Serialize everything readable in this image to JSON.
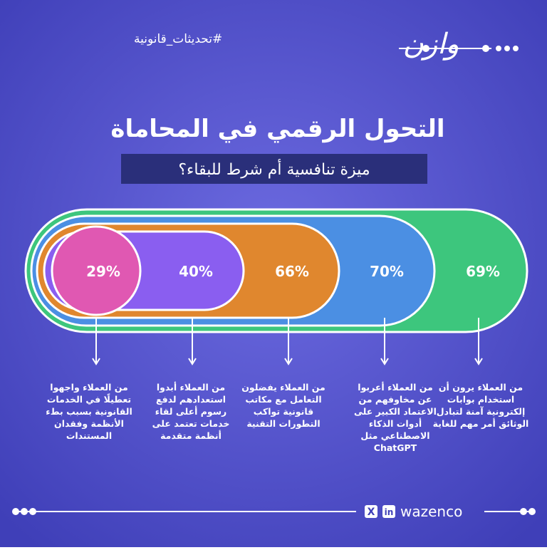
{
  "header": {
    "hashtag": "#تحديثات_قانونية",
    "logo": "وازن"
  },
  "title": "التحول الرقمي في المحاماة",
  "subtitle": "ميزة تنافسية أم شرط للبقاء؟",
  "items": [
    {
      "value_label": "29%",
      "description": [
        "من العملاء واجهوا",
        "تعطيلًا في الخدمات",
        "القانونية بسبب بطء",
        "الأنظمة وفقدان",
        "المستندات"
      ]
    },
    {
      "value_label": "40%",
      "description": [
        "من العملاء أبدوا",
        "استعدادهم لدفع",
        "رسوم أعلى لقاء",
        "خدمات تعتمد على",
        "أنظمة متقدمة"
      ]
    },
    {
      "value_label": "66%",
      "description": [
        "من العملاء يفضلون",
        "التعامل مع مكاتب",
        "قانونية تواكب",
        "التطورات التقنية"
      ]
    },
    {
      "value_label": "70%",
      "description": [
        "من العملاء أعربوا",
        "عن مخاوفهم من",
        "الاعتماد الكبير على",
        "أدوات الذكاء",
        "الاصطناعي مثل",
        "ChatGPT"
      ]
    },
    {
      "value_label": "69%",
      "description": [
        "من العملاء يرون أن",
        "استخدام بوابات",
        "إلكترونية آمنة لتبادل",
        "الوثائق أمر مهم للغاية"
      ]
    }
  ],
  "footer": {
    "brand": "wazenco"
  }
}
